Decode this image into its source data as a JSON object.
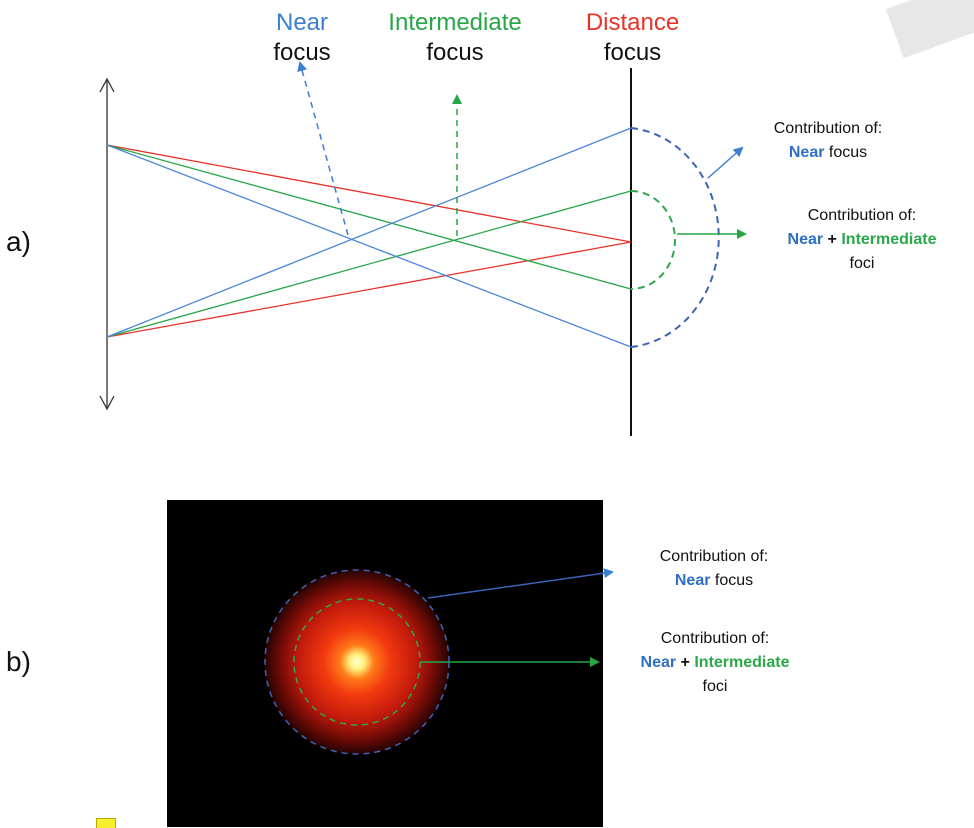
{
  "header": {
    "near_label": "Near",
    "near_sub": "focus",
    "intermediate_label": "Intermediate",
    "intermediate_sub": "focus",
    "distance_label": "Distance",
    "distance_sub": "focus"
  },
  "panel_a": {
    "label": "a)",
    "contrib_near": {
      "line1": "Contribution of:",
      "near": "Near",
      "rest": "focus"
    },
    "contrib_near_int": {
      "line1": "Contribution of:",
      "near": "Near",
      "plus": "+",
      "intermediate": "Intermediate",
      "line3": "foci"
    }
  },
  "panel_b": {
    "label": "b)",
    "contrib_near": {
      "line1": "Contribution of:",
      "near": "Near",
      "rest": "focus"
    },
    "contrib_near_int": {
      "line1": "Contribution of:",
      "near": "Near",
      "plus": "+",
      "intermediate": "Intermediate",
      "line3": "foci"
    }
  },
  "colors": {
    "near": "#3b7fd1",
    "intermediate": "#27a646",
    "distance": "#e8332a"
  }
}
